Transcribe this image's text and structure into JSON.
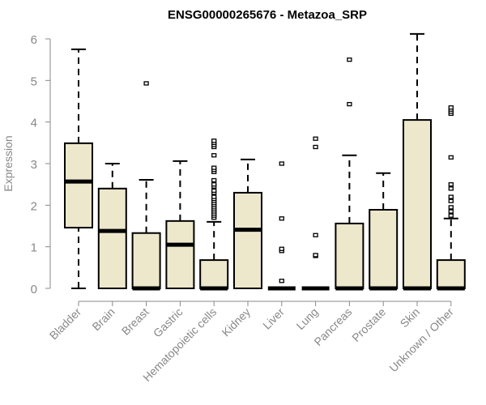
{
  "chart_data": {
    "type": "boxplot",
    "title": "ENSG00000265676 - Metazoa_SRP",
    "xlabel": "",
    "ylabel": "Expression",
    "ylim": [
      0,
      6
    ],
    "yticks": [
      "0",
      "1",
      "2",
      "3",
      "4",
      "5",
      "6"
    ],
    "box_color": "#ede7cc",
    "categories": [
      "Bladder",
      "Brain",
      "Breast",
      "Gastric",
      "Hematopoietic cells",
      "Kidney",
      "Liver",
      "Lung",
      "Pancreas",
      "Prostate",
      "Skin",
      "Unknown / Other"
    ],
    "boxes": [
      {
        "min": 0,
        "q1": 1.46,
        "median": 2.57,
        "q3": 3.49,
        "max": 5.75,
        "outliers": []
      },
      {
        "min": 0,
        "q1": 0,
        "median": 1.38,
        "q3": 2.4,
        "max": 3.0,
        "outliers": []
      },
      {
        "min": 0,
        "q1": 0,
        "median": 0,
        "q3": 1.33,
        "max": 2.61,
        "outliers": [
          4.93
        ]
      },
      {
        "min": 0,
        "q1": 0,
        "median": 1.05,
        "q3": 1.62,
        "max": 3.06,
        "outliers": []
      },
      {
        "min": 0,
        "q1": 0,
        "median": 0,
        "q3": 0.68,
        "max": 1.6,
        "outliers": [
          1.7,
          1.75,
          1.8,
          1.85,
          1.9,
          1.95,
          2.0,
          2.05,
          2.1,
          2.15,
          2.2,
          2.3,
          2.35,
          2.45,
          2.5,
          2.6,
          2.8,
          2.85,
          2.9,
          3.2,
          3.4,
          3.45,
          3.5,
          3.55
        ]
      },
      {
        "min": 0,
        "q1": 0,
        "median": 1.41,
        "q3": 2.3,
        "max": 3.1,
        "outliers": []
      },
      {
        "min": 0,
        "q1": 0,
        "median": 0,
        "q3": 0,
        "max": 0,
        "outliers": [
          0.18,
          0.9,
          0.95,
          1.68,
          3.0
        ]
      },
      {
        "min": 0,
        "q1": 0,
        "median": 0,
        "q3": 0,
        "max": 0,
        "outliers": [
          0.78,
          0.8,
          1.28,
          3.4,
          3.6
        ]
      },
      {
        "min": 0,
        "q1": 0,
        "median": 0,
        "q3": 1.56,
        "max": 3.2,
        "outliers": [
          4.43,
          5.5
        ]
      },
      {
        "min": 0,
        "q1": 0,
        "median": 0,
        "q3": 1.89,
        "max": 2.77,
        "outliers": []
      },
      {
        "min": 0,
        "q1": 0,
        "median": 0,
        "q3": 4.05,
        "max": 6.12,
        "outliers": []
      },
      {
        "min": 0,
        "q1": 0,
        "median": 0,
        "q3": 0.68,
        "max": 1.68,
        "outliers": [
          1.75,
          1.85,
          1.95,
          2.1,
          2.2,
          2.4,
          2.5,
          3.15,
          4.2,
          4.25,
          4.3,
          4.35
        ]
      }
    ]
  }
}
